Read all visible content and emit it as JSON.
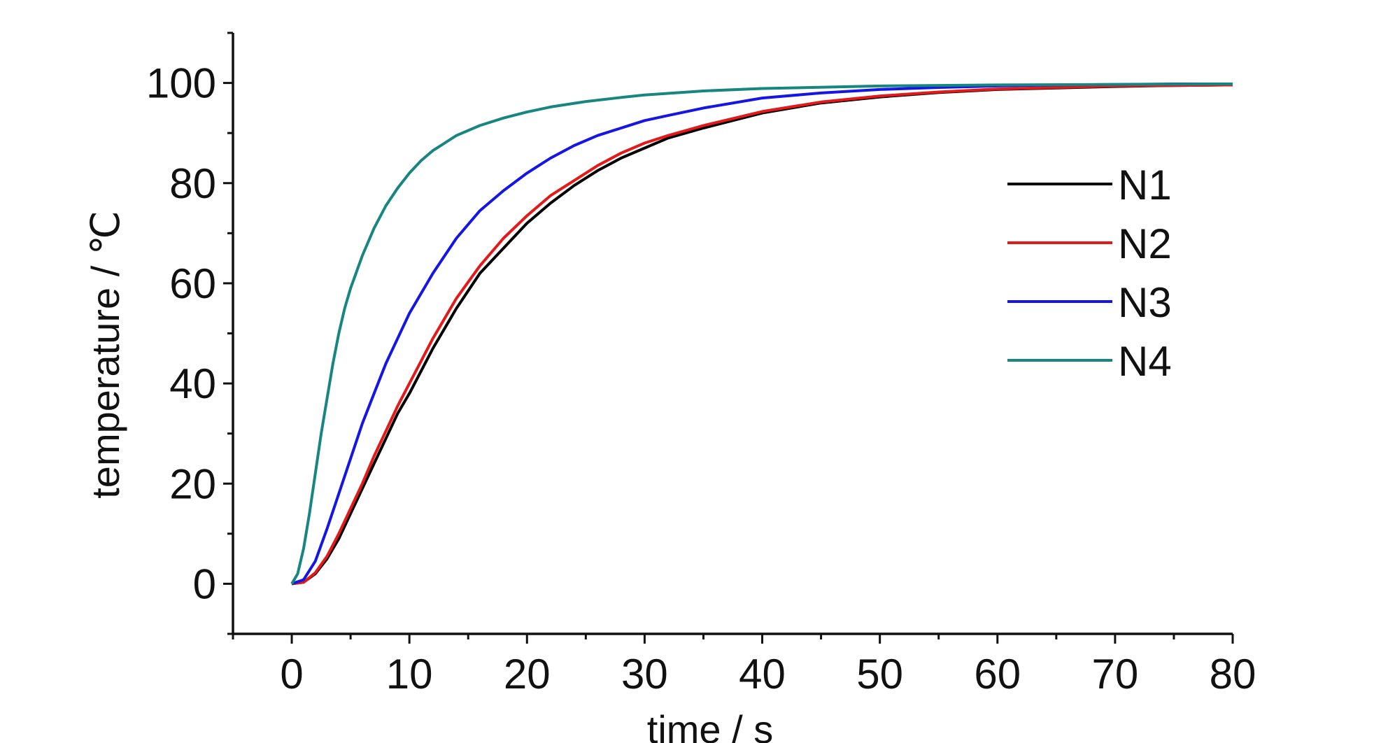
{
  "chart_data": {
    "type": "line",
    "xlabel": "time / s",
    "ylabel": "temperature / ℃",
    "xlim": [
      -5,
      80
    ],
    "ylim": [
      -10,
      110
    ],
    "xticks": [
      0,
      10,
      20,
      30,
      40,
      50,
      60,
      70,
      80
    ],
    "yticks": [
      0,
      20,
      40,
      60,
      80,
      100
    ],
    "xtick_labels": [
      "0",
      "10",
      "20",
      "30",
      "40",
      "50",
      "60",
      "70",
      "80"
    ],
    "ytick_labels": [
      "0",
      "20",
      "40",
      "60",
      "80",
      "100"
    ],
    "grid": false,
    "legend_position": "right",
    "series": [
      {
        "name": "N1",
        "color": "#000000",
        "x": [
          0,
          1,
          2,
          3,
          4,
          5,
          6,
          7,
          8,
          9,
          10,
          12,
          14,
          16,
          18,
          20,
          22,
          24,
          26,
          28,
          30,
          32,
          35,
          40,
          45,
          50,
          55,
          60,
          65,
          70,
          75,
          80
        ],
        "y": [
          0,
          0.3,
          2,
          5,
          9,
          14,
          19,
          24,
          29,
          34,
          38,
          47,
          55,
          62,
          67,
          72,
          76,
          79.5,
          82.5,
          85,
          87,
          89,
          91,
          94,
          96,
          97.2,
          98.1,
          98.7,
          99,
          99.3,
          99.5,
          99.6
        ]
      },
      {
        "name": "N2",
        "color": "#e41a1a",
        "x": [
          0,
          1,
          2,
          3,
          4,
          5,
          6,
          7,
          8,
          9,
          10,
          12,
          14,
          16,
          18,
          20,
          22,
          24,
          26,
          28,
          30,
          32,
          35,
          40,
          45,
          50,
          55,
          60,
          65,
          70,
          75,
          80
        ],
        "y": [
          0,
          0.3,
          2.2,
          5.5,
          10,
          15,
          20,
          25.5,
          30.5,
          35.5,
          40,
          49,
          57,
          63.5,
          69,
          73.5,
          77.5,
          80.5,
          83.5,
          86,
          88,
          89.5,
          91.5,
          94.3,
          96.2,
          97.4,
          98.2,
          98.8,
          99.1,
          99.4,
          99.5,
          99.6
        ]
      },
      {
        "name": "N3",
        "color": "#1515e6",
        "x": [
          0,
          1,
          2,
          3,
          4,
          5,
          6,
          7,
          8,
          9,
          10,
          12,
          14,
          16,
          18,
          20,
          22,
          24,
          26,
          28,
          30,
          32,
          35,
          40,
          45,
          50,
          55,
          60,
          65,
          70,
          75,
          80
        ],
        "y": [
          0,
          0.8,
          4.5,
          11,
          18,
          25,
          32,
          38,
          44,
          49,
          54,
          62,
          69,
          74.5,
          78.5,
          82,
          85,
          87.5,
          89.5,
          91,
          92.5,
          93.5,
          95,
          97,
          98,
          98.7,
          99.1,
          99.4,
          99.6,
          99.7,
          99.8,
          99.8
        ]
      },
      {
        "name": "N4",
        "color": "#178580",
        "x": [
          0,
          0.5,
          1,
          1.5,
          2,
          2.5,
          3,
          3.5,
          4,
          4.5,
          5,
          6,
          7,
          8,
          9,
          10,
          11,
          12,
          13,
          14,
          16,
          18,
          20,
          22,
          25,
          28,
          30,
          35,
          40,
          50,
          60,
          70,
          80
        ],
        "y": [
          0,
          2,
          7,
          14,
          22,
          30,
          37,
          44,
          50,
          55,
          59,
          65.5,
          71,
          75.5,
          79,
          82,
          84.5,
          86.5,
          88,
          89.5,
          91.5,
          93,
          94.2,
          95.2,
          96.3,
          97.1,
          97.6,
          98.4,
          98.9,
          99.4,
          99.6,
          99.7,
          99.8
        ]
      }
    ]
  }
}
